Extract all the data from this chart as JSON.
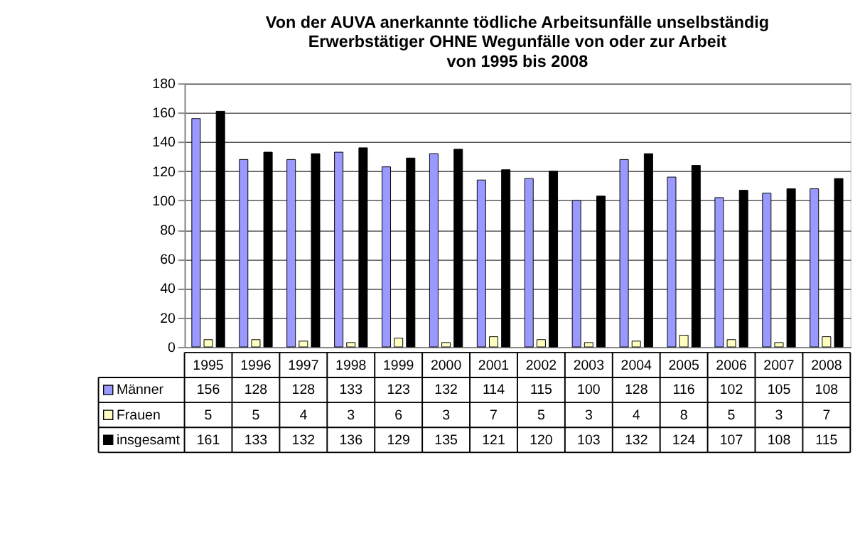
{
  "chart_data": {
    "type": "bar",
    "title": "Von der AUVA anerkannte tödliche Arbeitsunfälle unselbständig\nErwerbstätiger OHNE Wegunfälle von oder zur Arbeit\nvon 1995 bis 2008",
    "categories": [
      "1995",
      "1996",
      "1997",
      "1998",
      "1999",
      "2000",
      "2001",
      "2002",
      "2003",
      "2004",
      "2005",
      "2006",
      "2007",
      "2008"
    ],
    "series": [
      {
        "name": "Männer",
        "color": "#9999ff",
        "values": [
          156,
          128,
          128,
          133,
          123,
          132,
          114,
          115,
          100,
          128,
          116,
          102,
          105,
          108
        ]
      },
      {
        "name": "Frauen",
        "color": "#ffffc0",
        "values": [
          5,
          5,
          4,
          3,
          6,
          3,
          7,
          5,
          3,
          4,
          8,
          5,
          3,
          7
        ]
      },
      {
        "name": "insgesamt",
        "color": "#000000",
        "values": [
          161,
          133,
          132,
          136,
          129,
          135,
          121,
          120,
          103,
          132,
          124,
          107,
          108,
          115
        ]
      }
    ],
    "ylim": [
      0,
      180
    ],
    "yticks": [
      0,
      20,
      40,
      60,
      80,
      100,
      120,
      140,
      160,
      180
    ],
    "grid": "y",
    "legend": "bottom",
    "data_labels": true
  }
}
